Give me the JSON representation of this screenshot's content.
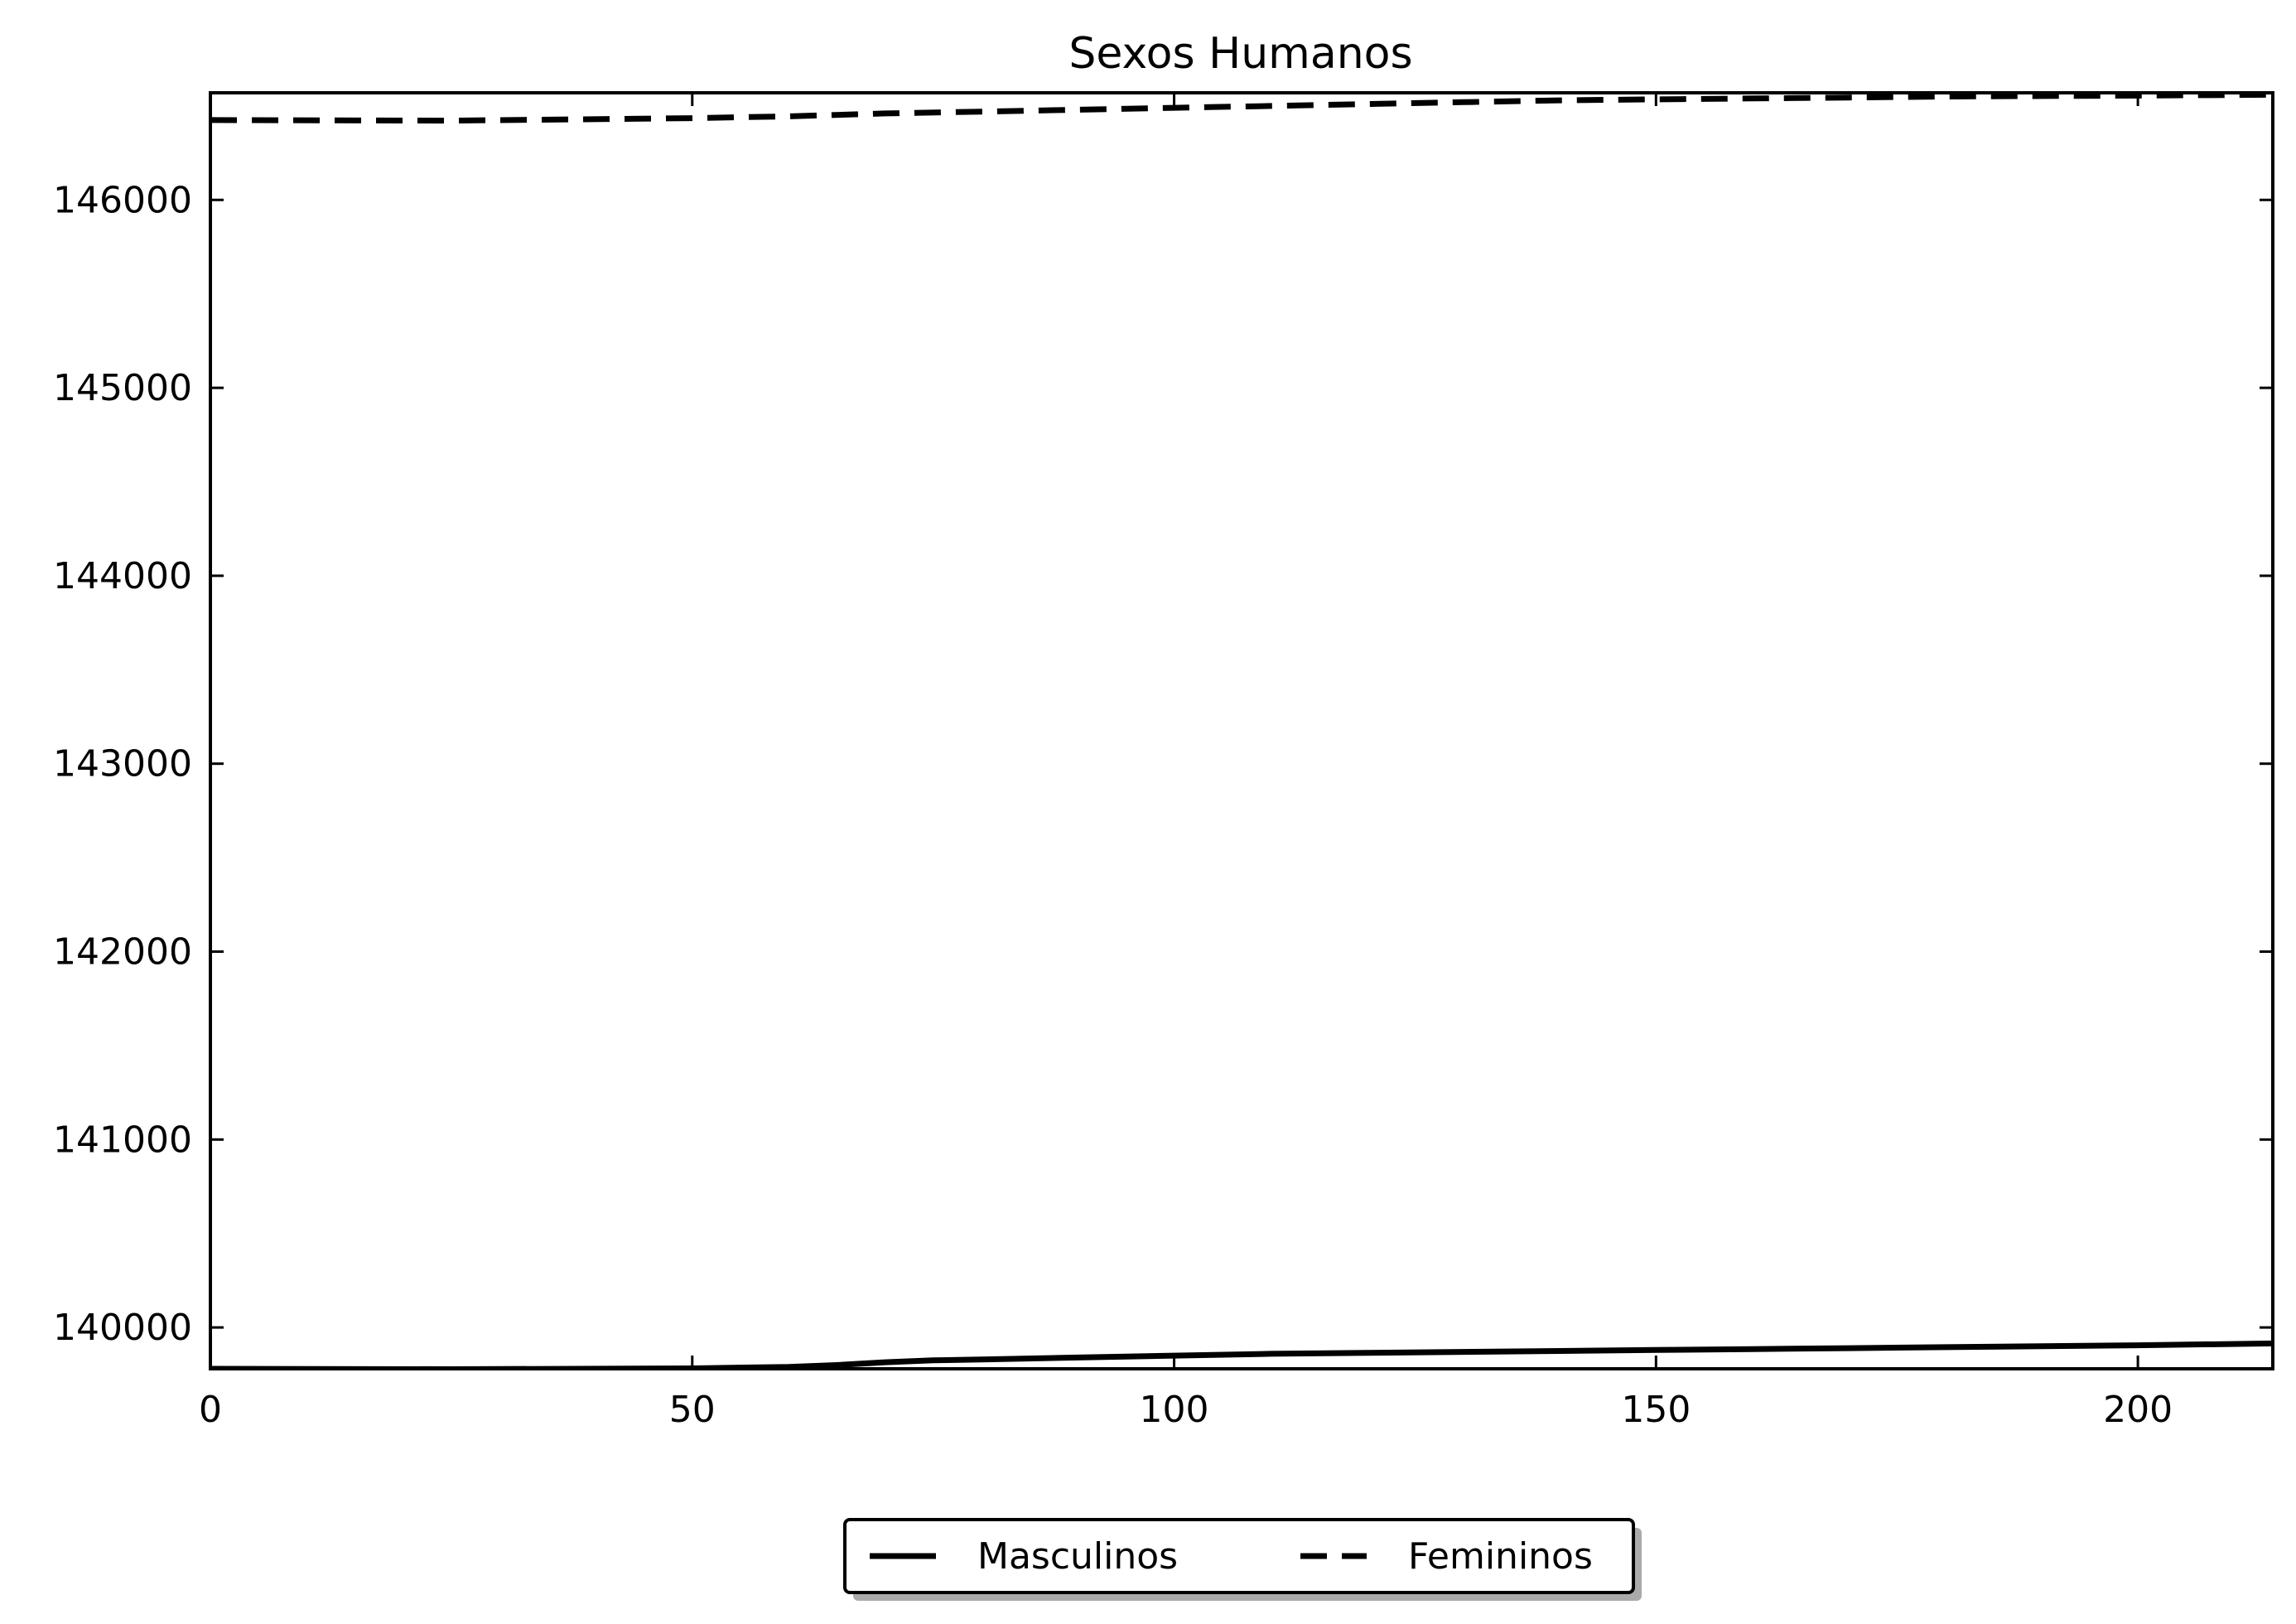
{
  "chart_data": {
    "type": "line",
    "title": "Sexos Humanos",
    "xlabel": "",
    "ylabel": "",
    "xlim": [
      0,
      214
    ],
    "ylim": [
      139780,
      146570
    ],
    "x_ticks": [
      0,
      50,
      100,
      150,
      200
    ],
    "y_ticks": [
      140000,
      141000,
      142000,
      143000,
      144000,
      145000,
      146000
    ],
    "grid": false,
    "legend_position": "bottom-center",
    "series": [
      {
        "name": "Masculinos",
        "style": "solid",
        "color": "#000000",
        "x": [
          0,
          25,
          50,
          60,
          65,
          70,
          75,
          80,
          90,
          100,
          110,
          120,
          130,
          140,
          150,
          160,
          170,
          180,
          190,
          200,
          214
        ],
        "values": [
          139780,
          139778,
          139782,
          139790,
          139800,
          139815,
          139825,
          139830,
          139840,
          139850,
          139860,
          139865,
          139870,
          139875,
          139880,
          139885,
          139890,
          139895,
          139900,
          139905,
          139915
        ]
      },
      {
        "name": "Femininos",
        "style": "dashed",
        "color": "#000000",
        "x": [
          0,
          25,
          50,
          60,
          70,
          80,
          90,
          100,
          110,
          120,
          130,
          140,
          150,
          160,
          170,
          180,
          190,
          200,
          214
        ],
        "values": [
          146425,
          146422,
          146435,
          146445,
          146460,
          146470,
          146480,
          146490,
          146500,
          146510,
          146520,
          146530,
          146535,
          146540,
          146545,
          146550,
          146553,
          146555,
          146560
        ]
      }
    ]
  }
}
